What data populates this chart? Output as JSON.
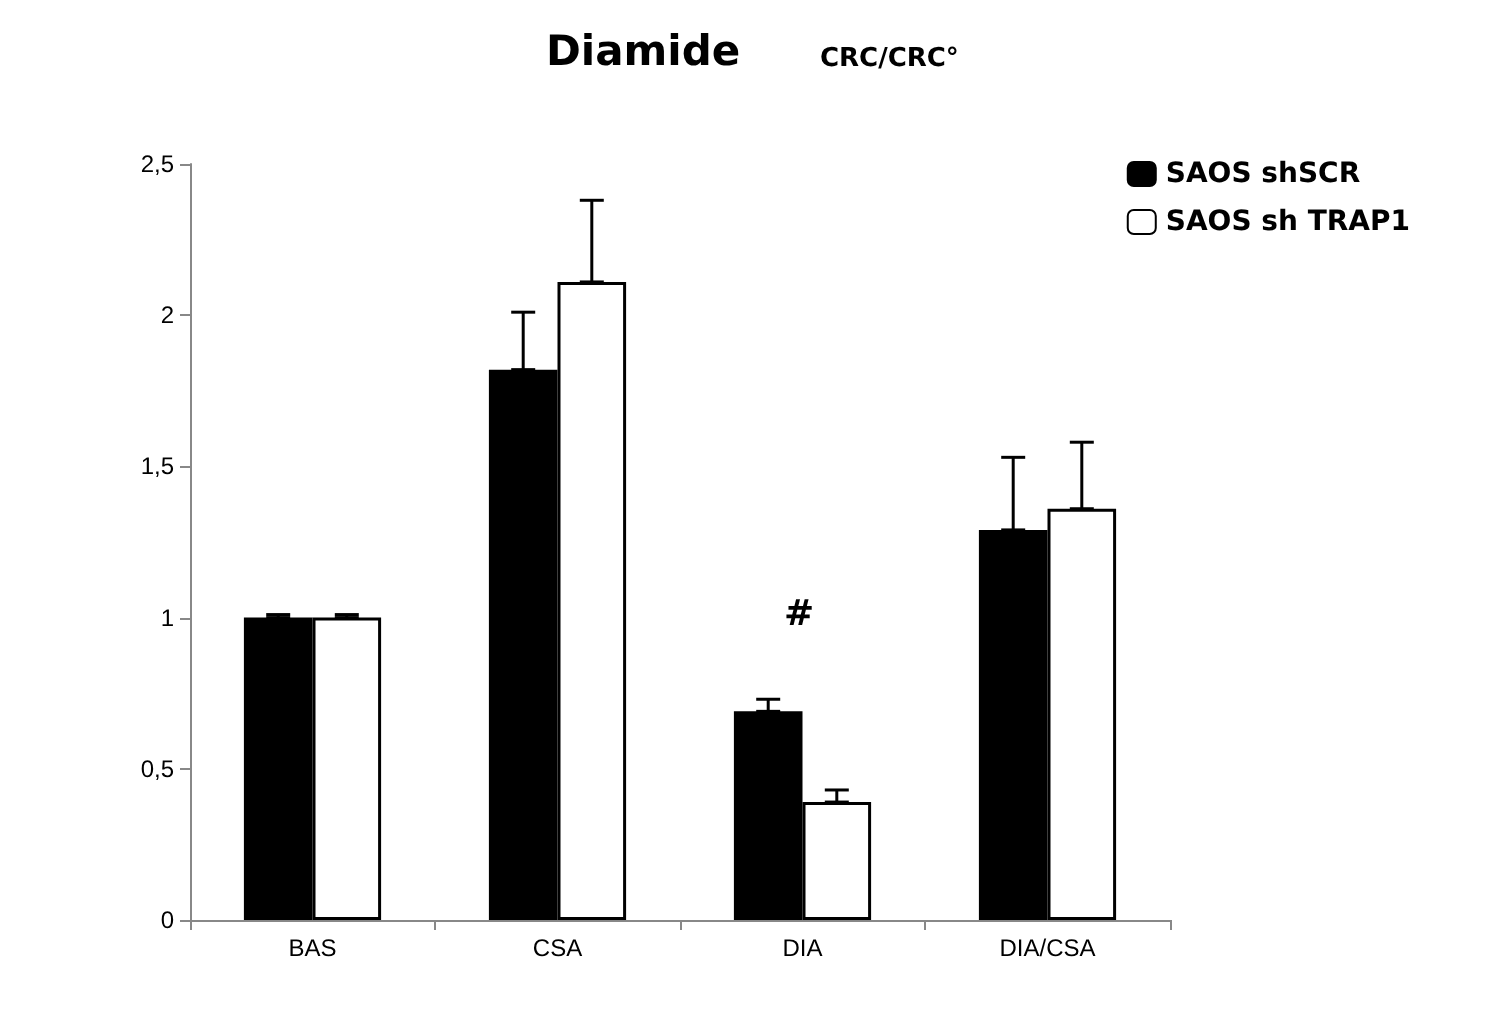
{
  "chart_data": {
    "type": "bar",
    "title": "Diamide",
    "subtitle": "CRC/CRC°",
    "categories": [
      "BAS",
      "CSA",
      "DIA",
      "DIA/CSA"
    ],
    "series": [
      {
        "name": "SAOS shSCR",
        "color": "#000000",
        "values": [
          1.0,
          1.82,
          0.69,
          1.29
        ],
        "errors": [
          [
            1.0,
            1.01
          ],
          [
            1.82,
            2.01
          ],
          [
            0.69,
            0.73
          ],
          [
            1.29,
            1.53
          ]
        ]
      },
      {
        "name": "SAOS sh TRAP1",
        "color": "#ffffff",
        "values": [
          1.0,
          2.11,
          0.39,
          1.36
        ],
        "errors": [
          [
            1.0,
            1.01
          ],
          [
            2.11,
            2.38
          ],
          [
            0.39,
            0.43
          ],
          [
            1.36,
            1.58
          ]
        ]
      }
    ],
    "ylim": [
      0,
      2.5
    ],
    "yticks": [
      0,
      {
        "value": 0.5,
        "label": "0,5"
      },
      1,
      {
        "value": 1.5,
        "label": "1,5"
      },
      2,
      {
        "value": 2.5,
        "label": "2,5"
      }
    ],
    "annotations": [
      "#"
    ],
    "grid": false,
    "legend": "top right"
  }
}
